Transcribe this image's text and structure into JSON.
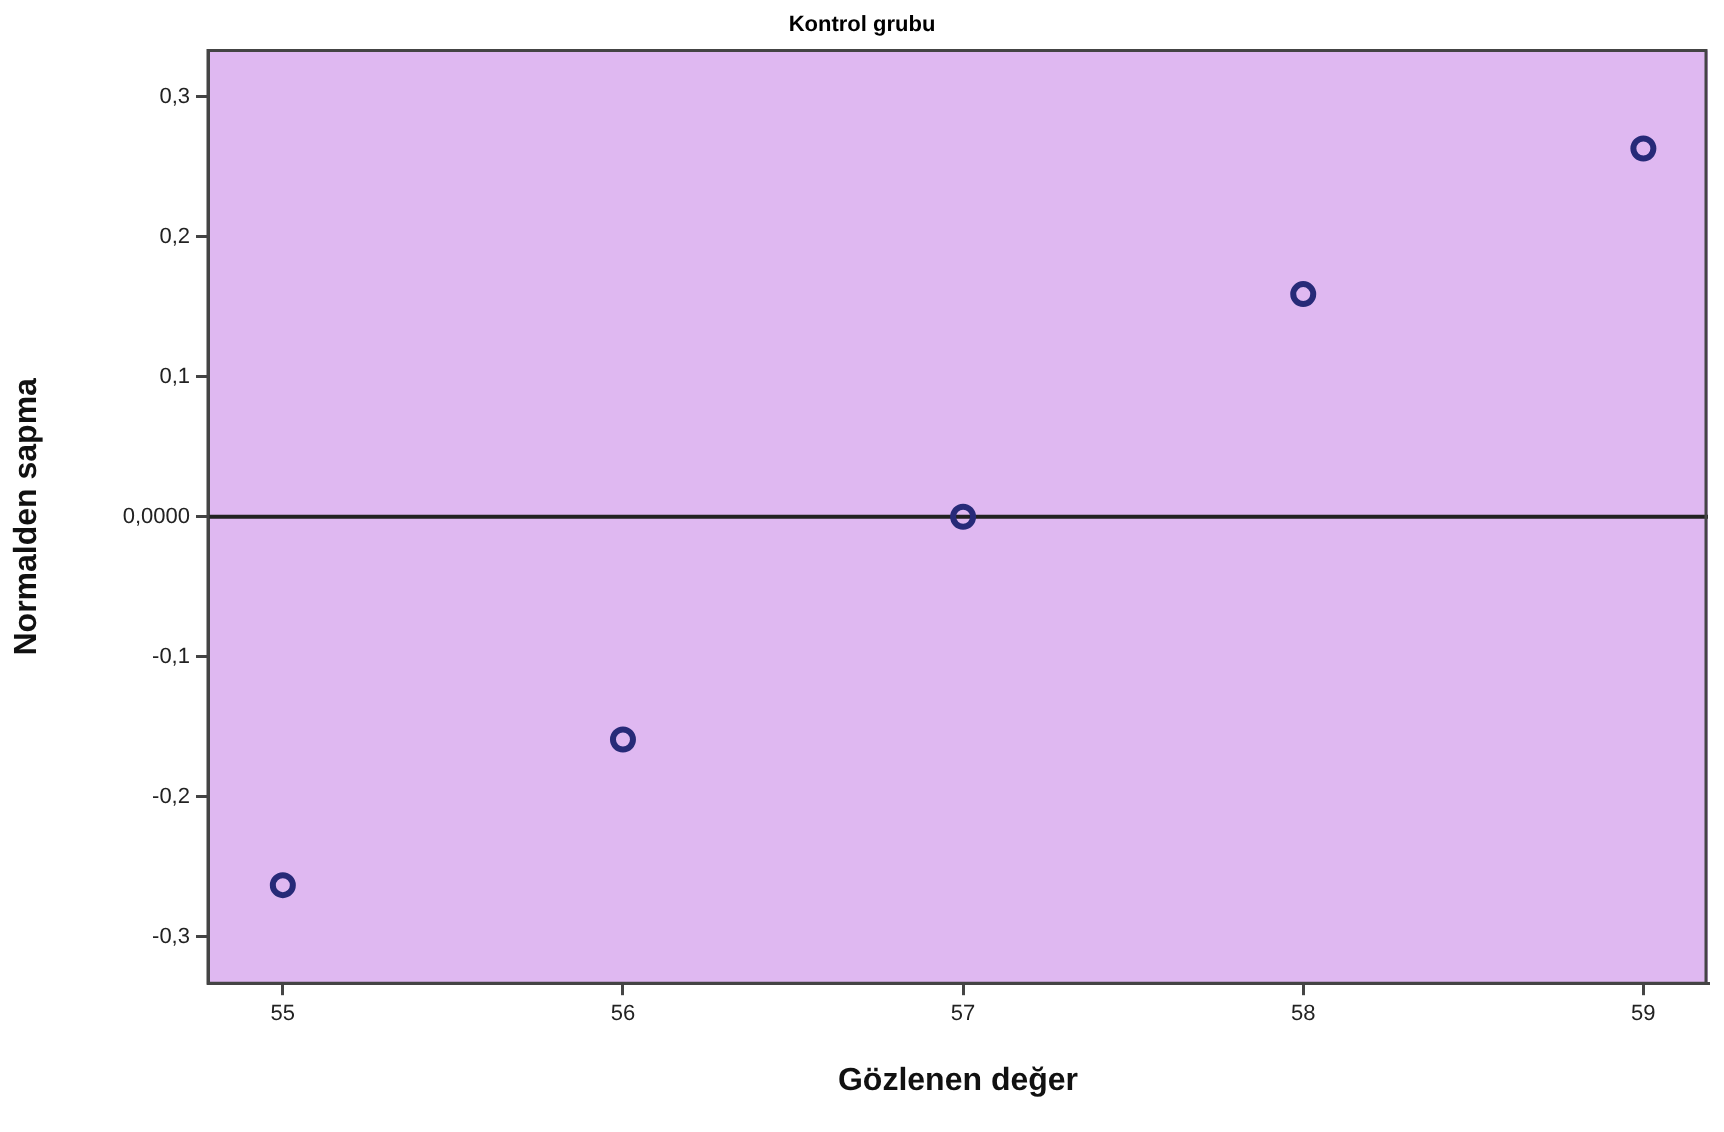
{
  "chart_data": {
    "type": "scatter",
    "title": "Kontrol grubu",
    "xlabel": "Gözlenen değer",
    "ylabel": "Normalden sapma",
    "x": [
      55,
      56,
      57,
      58,
      59
    ],
    "series": [
      {
        "color": "#272a78",
        "values": [
          -0.263,
          -0.159,
          0,
          0.159,
          0.263
        ]
      }
    ],
    "xlim": [
      54.78,
      59.19
    ],
    "xticks": [
      55,
      56,
      57,
      58,
      59
    ],
    "ylim": [
      -0.333,
      0.333
    ],
    "yticks": [
      {
        "value": -0.3,
        "label": "-0,3"
      },
      {
        "value": -0.2,
        "label": "-0,2"
      },
      {
        "value": -0.1,
        "label": "-0,1"
      },
      {
        "value": 0,
        "label": "0,0000"
      },
      {
        "value": 0.1,
        "label": "0,1"
      },
      {
        "value": 0.2,
        "label": "0,2"
      },
      {
        "value": 0.3,
        "label": "0,3"
      }
    ],
    "ref_lines": [
      {
        "axis": "y",
        "value": 0,
        "color": "#222222"
      }
    ],
    "grid": false,
    "legend": false,
    "marker": "circle"
  }
}
